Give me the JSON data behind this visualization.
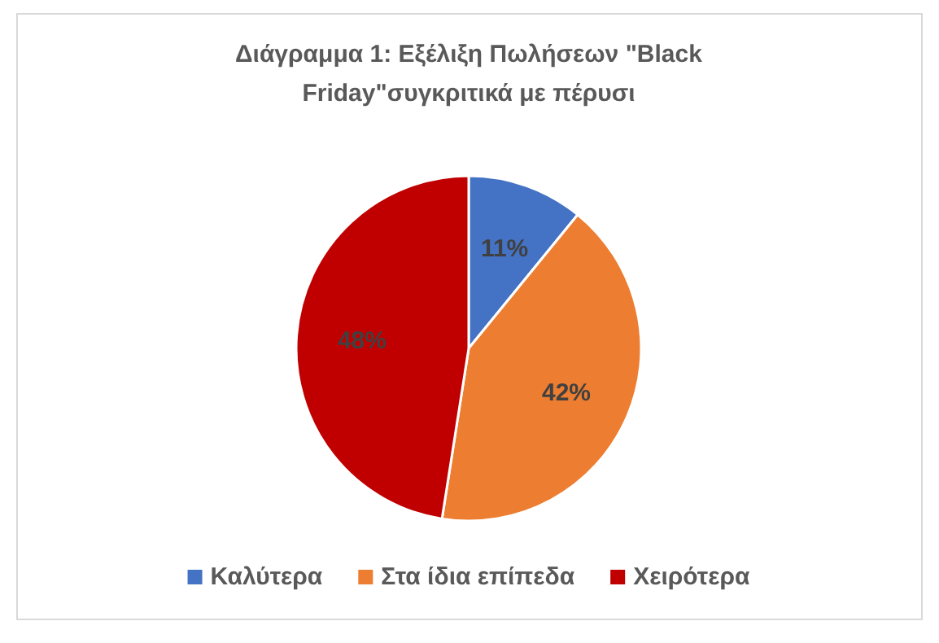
{
  "chart_data": {
    "type": "pie",
    "title": "Διάγραμμα 1: Εξέλιξη Πωλήσεων \"Black Friday\"συγκριτικά με πέρυσι",
    "categories": [
      "Καλύτερα",
      "Στα ίδια επίπεδα",
      "Χειρότερα"
    ],
    "values": [
      11,
      42,
      48
    ],
    "colors": [
      "#4472c4",
      "#ed7d31",
      "#c00000"
    ],
    "value_labels": [
      "11%",
      "42%",
      "48%"
    ],
    "legend": "bottom"
  }
}
